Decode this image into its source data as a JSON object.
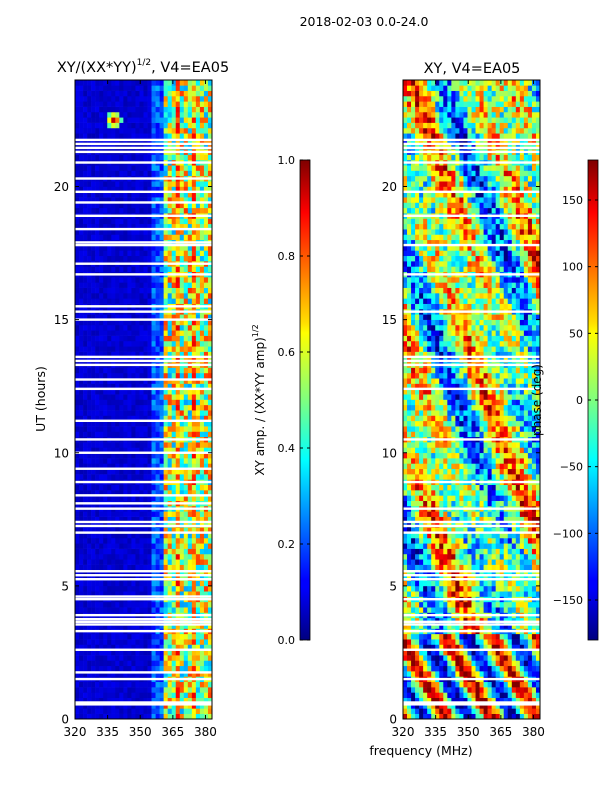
{
  "suptitle": "2018-02-03 0.0-24.0",
  "chart_data": [
    {
      "type": "heatmap",
      "title_main": "XY/(XX*YY)",
      "title_sup": "1/2",
      "title_rest": ", V4=EA05",
      "xlabel": "",
      "ylabel": "UT (hours)",
      "xlim": [
        320,
        383
      ],
      "ylim": [
        0,
        24
      ],
      "xticks": [
        "320",
        "335",
        "350",
        "365",
        "380"
      ],
      "xtick_values": [
        320,
        335,
        350,
        365,
        380
      ],
      "yticks": [
        "0",
        "5",
        "10",
        "15",
        "20"
      ],
      "ytick_values": [
        0,
        5,
        10,
        15,
        20
      ],
      "colorbar": {
        "range": [
          0,
          1
        ],
        "ticks": [
          "0.0",
          "0.2",
          "0.4",
          "0.6",
          "0.8",
          "1.0"
        ],
        "tick_values": [
          0,
          0.2,
          0.4,
          0.6,
          0.8,
          1.0
        ],
        "label_main": "XY amp. / (XX*YY amp)",
        "label_sup": "1/2",
        "colormap": "jet"
      },
      "notable_features": {
        "active_band_MHz": [
          360,
          383
        ],
        "hot_spot": {
          "freq_MHz": 338,
          "ut_hours": 22.5
        }
      },
      "flagged_ut_hours": [
        0.55,
        0.62,
        1.5,
        1.75,
        2.6,
        3.3,
        3.55,
        3.65,
        3.75,
        3.9,
        4.5,
        4.6,
        5.25,
        5.4,
        5.55,
        7.0,
        7.25,
        7.4,
        7.9,
        8.1,
        8.4,
        8.9,
        9.4,
        10.0,
        10.5,
        11.2,
        12.4,
        12.75,
        13.3,
        13.45,
        13.6,
        15.0,
        15.3,
        15.5,
        16.7,
        17.1,
        17.8,
        17.9,
        18.4,
        18.9,
        19.4,
        19.8,
        20.3,
        20.9,
        21.3,
        21.45,
        21.6,
        21.75
      ]
    },
    {
      "type": "heatmap",
      "title": "XY, V4=EA05",
      "xlabel": "frequency (MHz)",
      "ylabel": "",
      "xlim": [
        320,
        383
      ],
      "ylim": [
        0,
        24
      ],
      "xticks": [
        "320",
        "335",
        "350",
        "365",
        "380"
      ],
      "xtick_values": [
        320,
        335,
        350,
        365,
        380
      ],
      "yticks": [
        "0",
        "5",
        "10",
        "15",
        "20"
      ],
      "ytick_values": [
        0,
        5,
        10,
        15,
        20
      ],
      "colorbar": {
        "range": [
          -180,
          180
        ],
        "ticks": [
          "−150",
          "−100",
          "−50",
          "0",
          "50",
          "100",
          "150"
        ],
        "tick_values": [
          -150,
          -100,
          -50,
          0,
          50,
          100,
          150
        ],
        "label": "phase (deg)",
        "colormap": "jet"
      },
      "flagged_ut_hours": [
        0.55,
        0.62,
        1.5,
        2.6,
        3.3,
        3.55,
        3.65,
        3.9,
        4.5,
        5.25,
        5.4,
        5.55,
        7.0,
        7.25,
        7.4,
        7.9,
        8.9,
        10.5,
        12.4,
        13.3,
        13.45,
        13.6,
        15.3,
        16.7,
        17.8,
        18.9,
        19.8,
        20.9,
        21.3,
        21.45,
        21.6,
        21.75
      ]
    }
  ]
}
